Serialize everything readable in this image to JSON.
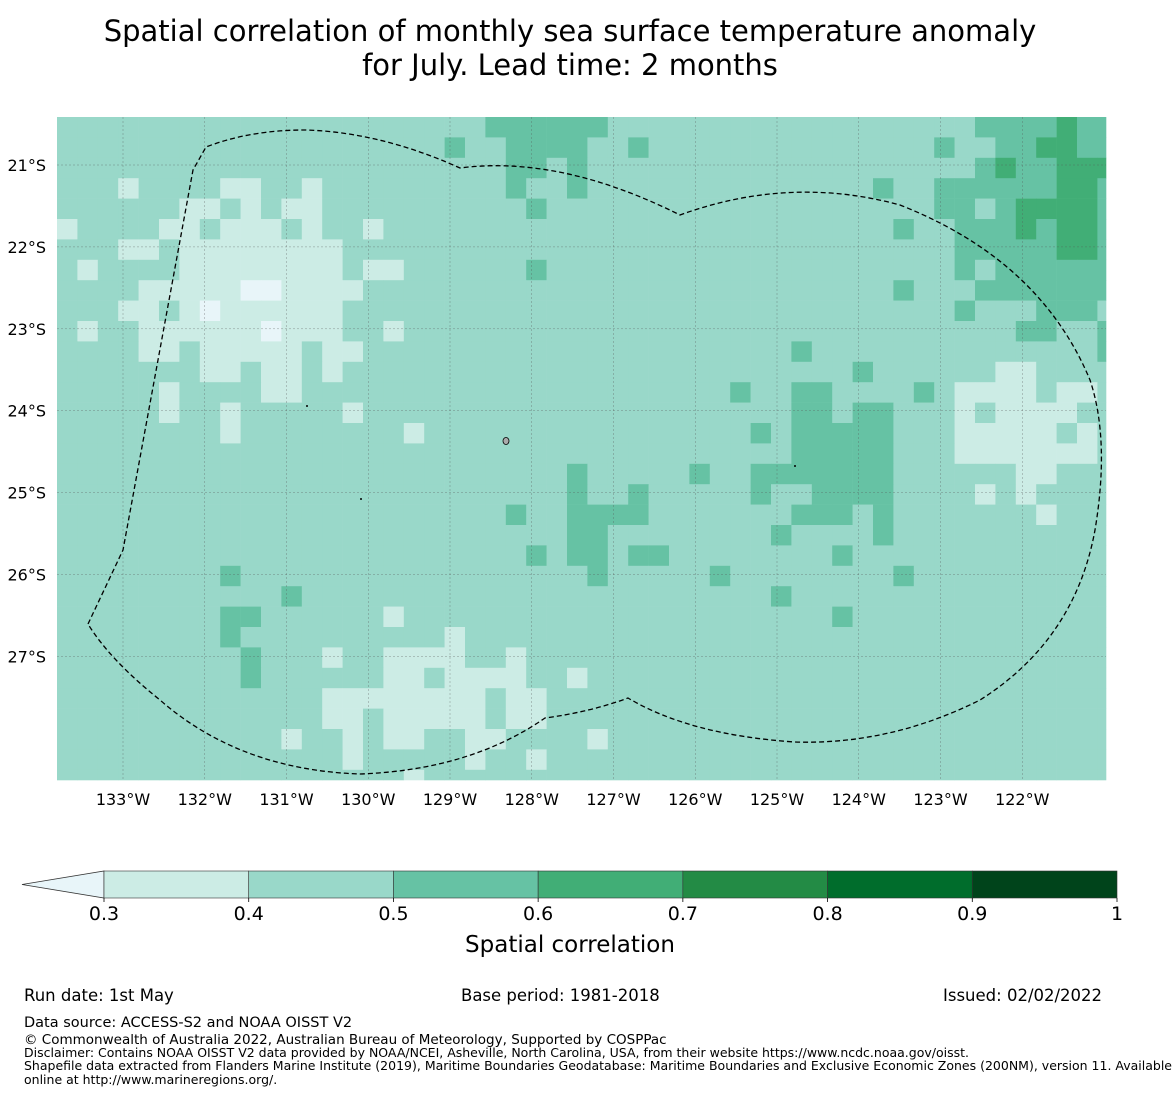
{
  "title_line1": "Spatial correlation of monthly sea surface temperature anomaly",
  "title_line2": "for July. Lead time: 2 months",
  "map": {
    "lon_labels": [
      "133°W",
      "132°W",
      "131°W",
      "130°W",
      "129°W",
      "128°W",
      "127°W",
      "126°W",
      "125°W",
      "124°W",
      "123°W",
      "122°W"
    ],
    "lat_labels": [
      "21°S",
      "22°S",
      "23°S",
      "24°S",
      "25°S",
      "26°S",
      "27°S"
    ],
    "lon_range": [
      -133.8,
      -121.0
    ],
    "lat_range": [
      -28.5,
      -20.4
    ],
    "grid_lines": true,
    "eez_boundary": "dashed-black"
  },
  "colorbar": {
    "ticks": [
      "0.3",
      "0.4",
      "0.5",
      "0.6",
      "0.7",
      "0.8",
      "0.9",
      "1"
    ],
    "colors": [
      "#ccece5",
      "#99d8c9",
      "#66c2a4",
      "#41ae76",
      "#238b45",
      "#006d2c",
      "#00441b"
    ],
    "under_color": "#e8f5f9",
    "label": "Spatial correlation"
  },
  "footer": {
    "run_date": "Run date: 1st May",
    "base_period": "Base period: 1981-2018",
    "issued": "Issued: 02/02/2022",
    "data_source": "Data source: ACCESS-S2 and NOAA OISST V2",
    "copyright": "© Commonwealth of Australia 2022, Australian Bureau of Meteorology, Supported by COSPPac",
    "disclaimer": "Disclaimer: Contains NOAA OISST V2 data provided by NOAA/NCEI, Asheville, North Carolina, USA, from their website https://www.ncdc.noaa.gov/oisst.",
    "shapefile_line1": "Shapefile data extracted from Flanders Marine Institute (2019), Maritime Boundaries Geodatabase: Maritime Boundaries and Exclusive Economic Zones (200NM), version 11. Available",
    "shapefile_line2": "online at http://www.marineregions.org/."
  }
}
